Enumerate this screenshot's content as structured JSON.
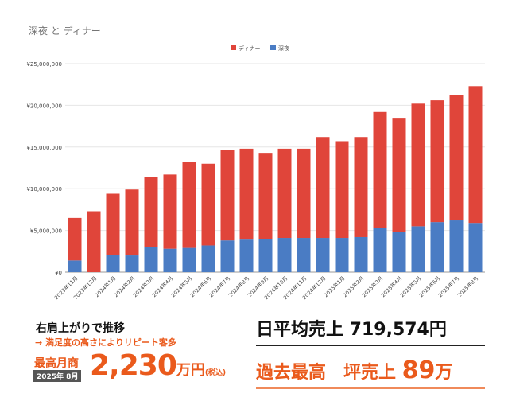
{
  "chart_data": {
    "type": "bar",
    "stacked": true,
    "title": "深夜 と ディナー",
    "legend": [
      "ディナー",
      "深夜"
    ],
    "legend_position": "top",
    "colors": {
      "ディナー": "#e0453a",
      "深夜": "#4a7cc4"
    },
    "yticks": [
      "¥0",
      "¥5,000,000",
      "¥10,000,000",
      "¥15,000,000",
      "¥20,000,000",
      "¥25,000,000"
    ],
    "ylim": [
      0,
      25000000
    ],
    "categories": [
      "2023年11月",
      "2023年12月",
      "2024年1月",
      "2024年2月",
      "2024年3月",
      "2024年4月",
      "2024年5月",
      "2024年6月",
      "2024年7月",
      "2024年8月",
      "2024年9月",
      "2024年10月",
      "2024年11月",
      "2024年12月",
      "2025年1月",
      "2025年2月",
      "2025年3月",
      "2025年4月",
      "2025年5月",
      "2025年6月",
      "2025年7月",
      "2025年8月"
    ],
    "series": [
      {
        "name": "深夜",
        "values": [
          1400000,
          0,
          2100000,
          2000000,
          3000000,
          2800000,
          2900000,
          3200000,
          3800000,
          3900000,
          4000000,
          4100000,
          4100000,
          4100000,
          4100000,
          4200000,
          5300000,
          4800000,
          5500000,
          6000000,
          6200000,
          5900000
        ]
      },
      {
        "name": "ディナー",
        "values": [
          5100000,
          7300000,
          7300000,
          7900000,
          8400000,
          8900000,
          10300000,
          9800000,
          10800000,
          10900000,
          10300000,
          10700000,
          10700000,
          12100000,
          11600000,
          12000000,
          13900000,
          13700000,
          14700000,
          14600000,
          15000000,
          16400000
        ]
      }
    ]
  },
  "summary": {
    "headline": "右肩上がりで推移",
    "sub": "→ 満足度の高さによりリピート客多",
    "peak_label": "最高月商",
    "peak_month": "2025年 8月",
    "peak_value": "2,230",
    "peak_unit": "万円",
    "peak_tax": "(税込)",
    "daily_label": "日平均売上 719,574円",
    "record_label": "過去最高　坪売上 ",
    "record_value": "89",
    "record_unit": "万"
  }
}
